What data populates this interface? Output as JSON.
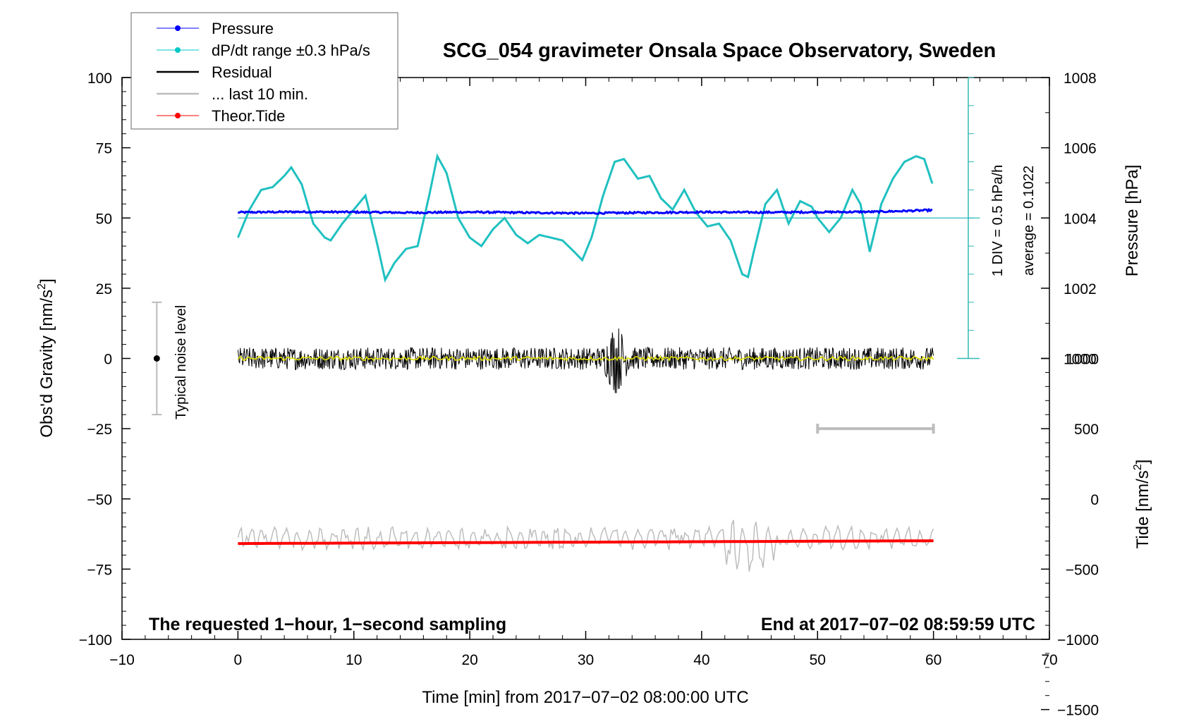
{
  "chart_data": {
    "type": "line",
    "title": "SCG_054 gravimeter Onsala Space Observatory, Sweden",
    "xlabel": "Time [min] from 2017−07−02 08:00:00 UTC",
    "ylabel_main": "Obs'd Gravity [nm/s",
    "ylabel_main_sup": "2",
    "ylabel_main_close": "]",
    "xlim": [
      -10,
      70
    ],
    "ylim": [
      -100,
      100
    ],
    "x_ticks": [
      "−10",
      "0",
      "10",
      "20",
      "30",
      "40",
      "50",
      "60",
      "70"
    ],
    "x_tick_values": [
      -10,
      0,
      10,
      20,
      30,
      40,
      50,
      60,
      70
    ],
    "y_ticks": [
      "−100",
      "−75",
      "−50",
      "−25",
      "0",
      "25",
      "50",
      "75",
      "100"
    ],
    "y_tick_values": [
      -100,
      -75,
      -50,
      -25,
      0,
      25,
      50,
      75,
      100
    ],
    "pressure_axis": {
      "label": "Pressure [hPa]",
      "ticks": [
        "1000",
        "1002",
        "1004",
        "1006",
        "1008"
      ],
      "tick_values": [
        1000,
        1002,
        1004,
        1006,
        1008
      ],
      "center_value": 1004,
      "center_gravity": 50,
      "hpa_per_gravity_unit": 0.08
    },
    "tide_axis": {
      "label": "Tide [nm/s",
      "label_sup": "2",
      "label_close": "]",
      "ticks": [
        "−1500",
        "−1000",
        "−500",
        "0",
        "500",
        "1000"
      ],
      "tick_values": [
        -1500,
        -1000,
        -500,
        0,
        500,
        1000
      ],
      "ref_value": 0,
      "ref_gravity": -50,
      "tide_per_gravity_unit": 20
    },
    "dpdt_scale": {
      "label_div": "1 DIV = 0.5 hPa/h",
      "label_avg": "average = 0.1022",
      "top": 100,
      "bottom": 0,
      "divisions": 10,
      "center": 50
    },
    "noise_bar": {
      "label": "Typical noise level",
      "x": -7,
      "y_center": 0,
      "y_low": -20,
      "y_high": 20
    },
    "last10_bar": {
      "x_start": 50,
      "x_end": 60,
      "y": -25
    },
    "legend": [
      {
        "label": "Pressure",
        "color": "#0000ff",
        "marker": true
      },
      {
        "label": "dP/dt range ±0.3 hPa/s",
        "color": "#00c8c8",
        "marker": true
      },
      {
        "label": "Residual",
        "color": "#000000",
        "marker": false
      },
      {
        "label": "... last 10 min.",
        "color": "#bdbdbd",
        "marker": false
      },
      {
        "label": "Theor.Tide",
        "color": "#ff0000",
        "marker": true
      }
    ],
    "series": [
      {
        "name": "Pressure",
        "color": "#0000ff",
        "x": [
          0,
          5,
          10,
          15,
          20,
          25,
          30,
          35,
          40,
          45,
          50,
          55,
          60
        ],
        "values": [
          52.0,
          52.2,
          52.1,
          51.9,
          52.1,
          51.9,
          51.7,
          51.9,
          52.1,
          52.0,
          52.1,
          52.2,
          52.8
        ]
      },
      {
        "name": "dP/dt",
        "color": "#20c0c0",
        "x": [
          0,
          1,
          2,
          3,
          4,
          4.6,
          5.5,
          6.5,
          7.5,
          8,
          9,
          10,
          11,
          12,
          12.7,
          13.5,
          14.5,
          15.5,
          16.5,
          17.2,
          18,
          19,
          20,
          21,
          22,
          23,
          24,
          25,
          26,
          27,
          28,
          29,
          29.7,
          30.5,
          31.5,
          32.5,
          33.3,
          34.5,
          35.5,
          36.5,
          37.5,
          38.5,
          39.5,
          40.5,
          41.5,
          42.5,
          43.5,
          44,
          44.5,
          45.5,
          46.5,
          47,
          47.5,
          48.5,
          49.5,
          50,
          51,
          52,
          53,
          53.7,
          54.5,
          55.5,
          56.5,
          57.5,
          58.5,
          59.2,
          60
        ],
        "values": [
          43,
          53,
          60,
          61,
          65,
          68,
          62,
          48,
          43,
          42,
          48,
          53,
          58,
          41,
          28,
          34,
          39,
          40,
          58,
          72,
          66,
          50,
          43,
          40,
          46,
          50,
          44,
          41,
          44,
          43,
          42,
          38,
          35,
          43,
          58,
          70,
          71,
          64,
          65,
          57,
          53,
          60,
          52,
          47,
          48,
          42,
          30,
          29,
          38,
          55,
          60,
          54,
          48,
          56,
          54,
          50,
          45,
          50,
          60,
          55,
          38,
          55,
          64,
          70,
          72,
          71,
          61
        ]
      },
      {
        "name": "Residual",
        "color": "#000000",
        "x": [
          0,
          60
        ],
        "values": [
          0,
          0
        ],
        "amplitude": 4
      },
      {
        "name": "Residual (smoothed)",
        "color": "#e0e000",
        "x": [
          0,
          60
        ],
        "values": [
          0,
          0
        ]
      },
      {
        "name": "... last 10 min.",
        "color": "#bdbdbd",
        "x": [
          0,
          60
        ],
        "values": [
          -62,
          -62
        ],
        "amplitude": 4
      },
      {
        "name": "Theor.Tide",
        "color": "#ff0000",
        "x": [
          0,
          60
        ],
        "values": [
          -65.9,
          -64.9
        ]
      }
    ],
    "annotations": {
      "bottom_left": "The requested 1−hour, 1−second sampling",
      "bottom_right": "End at 2017−07−02 08:59:59 UTC"
    }
  }
}
